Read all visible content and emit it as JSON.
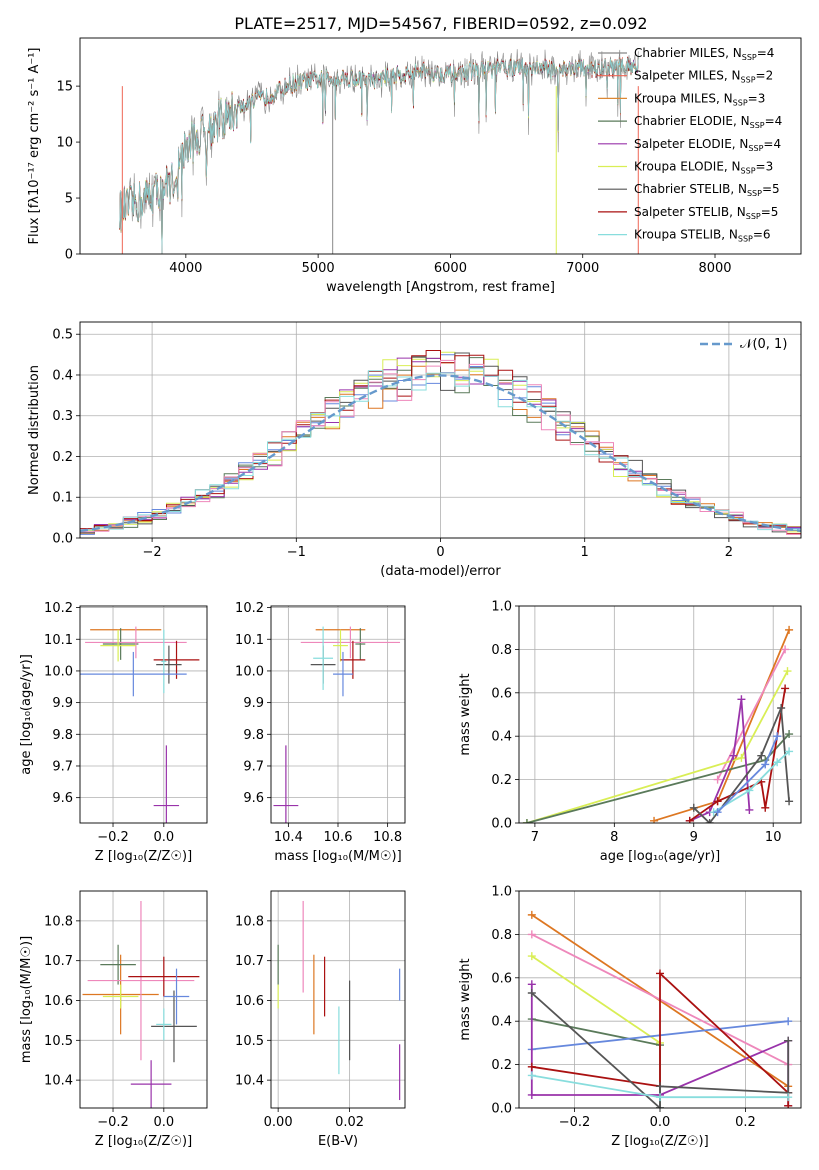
{
  "title": "PLATE=2517, MJD=54567, FIBERID=0592, z=0.092",
  "colors": {
    "blue": "#6688dd",
    "orange": "#dd7722",
    "green": "#5a7a5a",
    "purple": "#9933aa",
    "yellow": "#d9ee55",
    "darkgray": "#555555",
    "darkred": "#aa1111",
    "pink": "#ee88bb",
    "cyan": "#88dddd",
    "gray": "#888888",
    "steel": "#6699cc"
  },
  "chart_data": [
    {
      "id": "spectrum",
      "type": "line",
      "xlabel": "wavelength [Angstrom, rest frame]",
      "ylabel": "Flux [fλ10⁻¹⁷ erg cm⁻² s⁻¹ A⁻¹]",
      "xlim": [
        3200,
        8650
      ],
      "ylim": [
        0,
        19.3
      ],
      "xticks": [
        4000,
        5000,
        6000,
        7000,
        8000
      ],
      "yticks": [
        0,
        5,
        10,
        15
      ],
      "legend_position": "right",
      "legend": [
        {
          "label": "Chabrier MILES, N",
          "sub": "SSP",
          "suffix": "=4",
          "color": "#888888"
        },
        {
          "label": "Salpeter MILES, N",
          "sub": "SSP",
          "suffix": "=2",
          "color": "#ee6655"
        },
        {
          "label": "Kroupa MILES, N",
          "sub": "SSP",
          "suffix": "=3",
          "color": "#dd8833"
        },
        {
          "label": "Chabrier ELODIE, N",
          "sub": "SSP",
          "suffix": "=4",
          "color": "#5a7a5a"
        },
        {
          "label": "Salpeter ELODIE, N",
          "sub": "SSP",
          "suffix": "=4",
          "color": "#9933aa"
        },
        {
          "label": "Kroupa ELODIE, N",
          "sub": "SSP",
          "suffix": "=3",
          "color": "#d9ee55"
        },
        {
          "label": "Chabrier STELIB, N",
          "sub": "SSP",
          "suffix": "=5",
          "color": "#555555"
        },
        {
          "label": "Salpeter STELIB, N",
          "sub": "SSP",
          "suffix": "=5",
          "color": "#aa1111"
        },
        {
          "label": "Kroupa STELIB, N",
          "sub": "SSP",
          "suffix": "=6",
          "color": "#88dddd"
        }
      ],
      "continuum": [
        [
          3500,
          3.8
        ],
        [
          3700,
          5.0
        ],
        [
          3900,
          6.5
        ],
        [
          4000,
          9.5
        ],
        [
          4200,
          11.5
        ],
        [
          4400,
          13.0
        ],
        [
          4600,
          14.0
        ],
        [
          4800,
          15.2
        ],
        [
          5000,
          15.6
        ],
        [
          5200,
          15.8
        ],
        [
          5400,
          15.5
        ],
        [
          5600,
          16.0
        ],
        [
          5800,
          16.3
        ],
        [
          6000,
          16.1
        ],
        [
          6200,
          16.4
        ],
        [
          6400,
          16.6
        ],
        [
          6600,
          16.7
        ],
        [
          6800,
          16.5
        ],
        [
          7000,
          16.6
        ],
        [
          7200,
          16.6
        ],
        [
          7400,
          16.9
        ]
      ]
    },
    {
      "id": "residuals",
      "type": "line",
      "xlabel": "(data-model)/error",
      "ylabel": "Normed distribution",
      "xlim": [
        -2.5,
        2.5
      ],
      "ylim": [
        0,
        0.53
      ],
      "xticks": [
        -2,
        -1,
        0,
        1,
        2
      ],
      "yticks": [
        0.0,
        0.1,
        0.2,
        0.3,
        0.4,
        0.5
      ],
      "legend": [
        {
          "label": "𝒩(0, 1)",
          "color": "#6699cc"
        }
      ],
      "gaussian": {
        "mean": 0,
        "sigma": 1
      }
    },
    {
      "id": "age_vs_Z",
      "type": "scatter",
      "xlabel": "Z [log₁₀(Z/Z☉)]",
      "ylabel": "age  [log₁₀(age/yr)]",
      "xlim": [
        -0.33,
        0.17
      ],
      "ylim": [
        9.52,
        10.205
      ],
      "xticks": [
        -0.2,
        0.0
      ],
      "yticks": [
        9.6,
        9.7,
        9.8,
        9.9,
        10.0,
        10.1,
        10.2
      ],
      "points": [
        {
          "x": -0.15,
          "y": 10.13,
          "xerr": 0.14,
          "yerr": 0.0,
          "color": "#dd7722"
        },
        {
          "x": -0.17,
          "y": 10.085,
          "xerr": 0.07,
          "yerr": 0.05,
          "color": "#5a7a5a"
        },
        {
          "x": -0.11,
          "y": 10.09,
          "xerr": 0.2,
          "yerr": 0.05,
          "color": "#ee88bb"
        },
        {
          "x": -0.18,
          "y": 10.08,
          "xerr": 0.07,
          "yerr": 0.05,
          "color": "#d9ee55"
        },
        {
          "x": 0.05,
          "y": 10.035,
          "xerr": 0.09,
          "yerr": 0.06,
          "color": "#aa1111"
        },
        {
          "x": 0.02,
          "y": 10.02,
          "xerr": 0.05,
          "yerr": 0.06,
          "color": "#555555"
        },
        {
          "x": 0.0,
          "y": 10.03,
          "xerr": 0.01,
          "yerr": 0.1,
          "color": "#88dddd"
        },
        {
          "x": -0.12,
          "y": 9.99,
          "xerr": 0.21,
          "yerr": 0.07,
          "color": "#6688dd"
        },
        {
          "x": 0.01,
          "y": 9.575,
          "xerr": 0.05,
          "yerr": 0.19,
          "color": "#9933aa"
        }
      ]
    },
    {
      "id": "age_vs_mass",
      "type": "scatter",
      "xlabel": "mass [log₁₀(M/M☉)]",
      "ylabel": "",
      "xlim": [
        10.33,
        10.87
      ],
      "ylim": [
        9.52,
        10.205
      ],
      "xticks": [
        10.4,
        10.6,
        10.8
      ],
      "yticks": [
        9.6,
        9.7,
        9.8,
        9.9,
        10.0,
        10.1,
        10.2
      ],
      "points": [
        {
          "x": 10.61,
          "y": 10.13,
          "xerr": 0.1,
          "yerr": 0.0,
          "color": "#dd7722"
        },
        {
          "x": 10.69,
          "y": 10.085,
          "xerr": 0.02,
          "yerr": 0.05,
          "color": "#5a7a5a"
        },
        {
          "x": 10.65,
          "y": 10.09,
          "xerr": 0.2,
          "yerr": 0.05,
          "color": "#ee88bb"
        },
        {
          "x": 10.61,
          "y": 10.08,
          "xerr": 0.03,
          "yerr": 0.05,
          "color": "#d9ee55"
        },
        {
          "x": 10.66,
          "y": 10.035,
          "xerr": 0.05,
          "yerr": 0.06,
          "color": "#aa1111"
        },
        {
          "x": 10.54,
          "y": 10.02,
          "xerr": 0.05,
          "yerr": 0.06,
          "color": "#555555"
        },
        {
          "x": 10.54,
          "y": 10.04,
          "xerr": 0.04,
          "yerr": 0.1,
          "color": "#88dddd"
        },
        {
          "x": 10.62,
          "y": 9.99,
          "xerr": 0.04,
          "yerr": 0.07,
          "color": "#6688dd"
        },
        {
          "x": 10.39,
          "y": 9.575,
          "xerr": 0.05,
          "yerr": 0.19,
          "color": "#9933aa"
        }
      ]
    },
    {
      "id": "massweight_vs_age",
      "type": "line",
      "xlabel": "age  [log₁₀(age/yr)]",
      "ylabel": "mass weight",
      "xlim": [
        6.8,
        10.35
      ],
      "ylim": [
        0,
        1.0
      ],
      "xticks": [
        7,
        8,
        9,
        10
      ],
      "yticks": [
        0.0,
        0.2,
        0.4,
        0.6,
        0.8,
        1.0
      ],
      "series": [
        {
          "color": "#dd7722",
          "x": [
            8.5,
            9.3,
            10.2
          ],
          "y": [
            0.01,
            0.1,
            0.89
          ]
        },
        {
          "color": "#ee88bb",
          "x": [
            9.3,
            10.15
          ],
          "y": [
            0.2,
            0.8
          ]
        },
        {
          "color": "#d9ee55",
          "x": [
            6.9,
            9.6,
            10.18
          ],
          "y": [
            0.0,
            0.3,
            0.7
          ]
        },
        {
          "color": "#5a7a5a",
          "x": [
            6.9,
            9.9,
            10.2
          ],
          "y": [
            0.0,
            0.29,
            0.41
          ]
        },
        {
          "color": "#9933aa",
          "x": [
            8.95,
            9.2,
            9.5,
            9.6,
            9.7
          ],
          "y": [
            0.01,
            0.05,
            0.31,
            0.57,
            0.06
          ]
        },
        {
          "color": "#aa1111",
          "x": [
            8.95,
            9.3,
            9.85,
            9.9,
            10.15
          ],
          "y": [
            0.01,
            0.1,
            0.19,
            0.07,
            0.62
          ]
        },
        {
          "color": "#555555",
          "x": [
            9.0,
            9.2,
            9.85,
            10.1,
            10.2
          ],
          "y": [
            0.07,
            0.0,
            0.31,
            0.53,
            0.1
          ]
        },
        {
          "color": "#88dddd",
          "x": [
            9.25,
            9.7,
            10.05,
            10.2
          ],
          "y": [
            0.05,
            0.15,
            0.28,
            0.33
          ]
        },
        {
          "color": "#6688dd",
          "x": [
            9.3,
            9.9,
            10.05
          ],
          "y": [
            0.05,
            0.27,
            0.4
          ]
        }
      ]
    },
    {
      "id": "mass_vs_Z",
      "type": "scatter",
      "xlabel": "Z [log₁₀(Z/Z☉)]",
      "ylabel": "mass [log₁₀(M/M☉)]",
      "xlim": [
        -0.33,
        0.17
      ],
      "ylim": [
        10.33,
        10.875
      ],
      "xticks": [
        -0.2,
        0.0
      ],
      "yticks": [
        10.4,
        10.5,
        10.6,
        10.7,
        10.8
      ],
      "points": [
        {
          "x": -0.17,
          "y": 10.615,
          "xerr": 0.15,
          "yerr": 0.1,
          "color": "#dd7722"
        },
        {
          "x": -0.18,
          "y": 10.69,
          "xerr": 0.07,
          "yerr": 0.05,
          "color": "#5a7a5a"
        },
        {
          "x": -0.09,
          "y": 10.65,
          "xerr": 0.21,
          "yerr": 0.2,
          "color": "#ee88bb"
        },
        {
          "x": -0.17,
          "y": 10.61,
          "xerr": 0.07,
          "yerr": 0.03,
          "color": "#d9ee55"
        },
        {
          "x": 0.0,
          "y": 10.66,
          "xerr": 0.14,
          "yerr": 0.05,
          "color": "#aa1111"
        },
        {
          "x": 0.04,
          "y": 10.535,
          "xerr": 0.09,
          "yerr": 0.09,
          "color": "#555555"
        },
        {
          "x": 0.0,
          "y": 10.54,
          "xerr": 0.03,
          "yerr": 0.04,
          "color": "#88dddd"
        },
        {
          "x": 0.05,
          "y": 10.61,
          "xerr": 0.05,
          "yerr": 0.07,
          "color": "#6688dd"
        },
        {
          "x": -0.05,
          "y": 10.39,
          "xerr": 0.08,
          "yerr": 0.06,
          "color": "#9933aa"
        }
      ]
    },
    {
      "id": "mass_vs_ebv",
      "type": "scatter",
      "xlabel": "E(B-V)",
      "ylabel": "",
      "xlim": [
        -0.002,
        0.0355
      ],
      "ylim": [
        10.33,
        10.875
      ],
      "xticks": [
        0.0,
        0.02
      ],
      "yticks": [
        10.4,
        10.5,
        10.6,
        10.7,
        10.8
      ],
      "points": [
        {
          "x": 0.0,
          "y": 10.69,
          "xerr": 0,
          "yerr": 0.05,
          "color": "#5a7a5a"
        },
        {
          "x": 0.0,
          "y": 10.61,
          "xerr": 0,
          "yerr": 0.03,
          "color": "#d9ee55"
        },
        {
          "x": 0.007,
          "y": 10.735,
          "xerr": 0,
          "yerr": 0.115,
          "color": "#ee88bb"
        },
        {
          "x": 0.01,
          "y": 10.615,
          "xerr": 0,
          "yerr": 0.1,
          "color": "#dd7722"
        },
        {
          "x": 0.013,
          "y": 10.635,
          "xerr": 0,
          "yerr": 0.075,
          "color": "#aa1111"
        },
        {
          "x": 0.017,
          "y": 10.5,
          "xerr": 0,
          "yerr": 0.085,
          "color": "#88dddd"
        },
        {
          "x": 0.02,
          "y": 10.55,
          "xerr": 0,
          "yerr": 0.1,
          "color": "#555555"
        },
        {
          "x": 0.034,
          "y": 10.64,
          "xerr": 0,
          "yerr": 0.04,
          "color": "#6688dd"
        },
        {
          "x": 0.034,
          "y": 10.42,
          "xerr": 0,
          "yerr": 0.07,
          "color": "#9933aa"
        }
      ]
    },
    {
      "id": "massweight_vs_Z",
      "type": "line",
      "xlabel": "Z [log₁₀(Z/Z☉)]",
      "ylabel": "mass weight",
      "xlim": [
        -0.33,
        0.33
      ],
      "ylim": [
        0,
        1.0
      ],
      "xticks": [
        -0.2,
        0.0,
        0.2
      ],
      "yticks": [
        0.0,
        0.2,
        0.4,
        0.6,
        0.8,
        1.0
      ],
      "series": [
        {
          "color": "#dd7722",
          "x": [
            -0.3,
            0.3
          ],
          "y": [
            0.89,
            0.1
          ]
        },
        {
          "color": "#ee88bb",
          "x": [
            -0.3,
            0.3
          ],
          "y": [
            0.8,
            0.2
          ]
        },
        {
          "color": "#d9ee55",
          "x": [
            -0.3,
            0.0
          ],
          "y": [
            0.7,
            0.3
          ]
        },
        {
          "color": "#5a7a5a",
          "x": [
            -0.3,
            0.0,
            0.0
          ],
          "y": [
            0.41,
            0.29,
            0.0
          ]
        },
        {
          "color": "#6688dd",
          "x": [
            -0.3,
            0.3
          ],
          "y": [
            0.27,
            0.4
          ]
        },
        {
          "color": "#9933aa",
          "x": [
            -0.3,
            -0.3,
            0.0,
            0.3,
            0.3
          ],
          "y": [
            0.57,
            0.06,
            0.06,
            0.31,
            0.01
          ]
        },
        {
          "color": "#aa1111",
          "x": [
            -0.3,
            0.0,
            0.0,
            0.3,
            0.3
          ],
          "y": [
            0.19,
            0.1,
            0.62,
            0.07,
            0.01
          ]
        },
        {
          "color": "#555555",
          "x": [
            -0.3,
            0.0,
            0.0,
            0.3,
            0.3
          ],
          "y": [
            0.53,
            0.0,
            0.1,
            0.07,
            0.31
          ]
        },
        {
          "color": "#88dddd",
          "x": [
            -0.3,
            0.0,
            0.3
          ],
          "y": [
            0.15,
            0.05,
            0.05
          ]
        }
      ]
    }
  ]
}
